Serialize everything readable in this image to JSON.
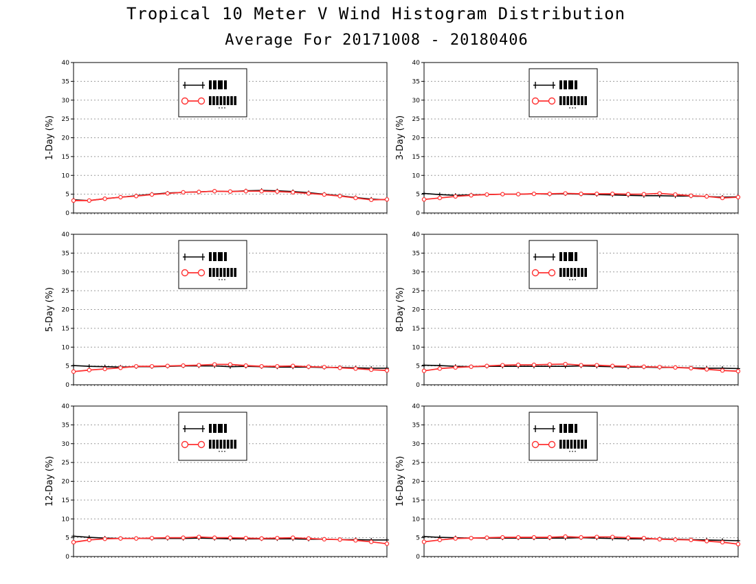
{
  "title": "Tropical 10 Meter V Wind Histogram Distribution",
  "subtitle": "Average For 20171008 - 20180406",
  "colors": {
    "series1": "#000000",
    "series2": "#ff3030",
    "grid": "#9a9a9a"
  },
  "chart_data": [
    {
      "type": "line",
      "ylabel": "1-Day (%)",
      "ylim": [
        0,
        40
      ],
      "yticks": [
        0,
        5,
        10,
        15,
        20,
        25,
        30,
        35,
        40
      ],
      "legend_position": "top-center",
      "series": [
        {
          "name": "",
          "marker": "plus",
          "values": [
            3.5,
            3.3,
            3.8,
            4.2,
            4.6,
            5.0,
            5.3,
            5.5,
            5.6,
            5.8,
            5.7,
            5.9,
            6.0,
            5.9,
            5.7,
            5.4,
            5.0,
            4.6,
            4.1,
            3.7,
            3.5
          ]
        },
        {
          "name": "",
          "marker": "circle",
          "values": [
            3.3,
            3.3,
            3.8,
            4.2,
            4.5,
            4.9,
            5.2,
            5.5,
            5.6,
            5.8,
            5.7,
            5.8,
            5.8,
            5.7,
            5.5,
            5.2,
            4.9,
            4.5,
            4.0,
            3.5,
            3.6
          ]
        }
      ]
    },
    {
      "type": "line",
      "ylabel": "3-Day (%)",
      "ylim": [
        0,
        40
      ],
      "yticks": [
        0,
        5,
        10,
        15,
        20,
        25,
        30,
        35,
        40
      ],
      "legend_position": "top-center",
      "series": [
        {
          "name": "",
          "marker": "plus",
          "values": [
            5.2,
            4.9,
            4.7,
            4.8,
            4.9,
            5.0,
            5.0,
            5.1,
            5.0,
            5.1,
            5.0,
            4.9,
            4.8,
            4.7,
            4.6,
            4.6,
            4.5,
            4.5,
            4.4,
            4.2,
            4.3
          ]
        },
        {
          "name": "",
          "marker": "circle",
          "values": [
            3.6,
            4.0,
            4.4,
            4.7,
            4.9,
            5.0,
            5.0,
            5.1,
            5.1,
            5.2,
            5.1,
            5.1,
            5.1,
            5.0,
            5.0,
            5.2,
            4.9,
            4.6,
            4.4,
            4.0,
            4.2
          ]
        }
      ]
    },
    {
      "type": "line",
      "ylabel": "5-Day (%)",
      "ylim": [
        0,
        40
      ],
      "yticks": [
        0,
        5,
        10,
        15,
        20,
        25,
        30,
        35,
        40
      ],
      "legend_position": "top-center",
      "series": [
        {
          "name": "",
          "marker": "plus",
          "values": [
            5.1,
            4.9,
            4.8,
            4.7,
            4.8,
            4.8,
            4.9,
            5.0,
            5.0,
            5.0,
            4.8,
            4.9,
            4.8,
            4.7,
            4.7,
            4.7,
            4.6,
            4.6,
            4.5,
            4.4,
            4.4
          ]
        },
        {
          "name": "",
          "marker": "circle",
          "values": [
            3.5,
            3.9,
            4.2,
            4.5,
            4.9,
            4.9,
            5.0,
            5.1,
            5.2,
            5.4,
            5.4,
            5.1,
            4.9,
            4.9,
            5.0,
            4.8,
            4.7,
            4.5,
            4.3,
            4.0,
            3.8
          ]
        }
      ]
    },
    {
      "type": "line",
      "ylabel": "8-Day (%)",
      "ylim": [
        0,
        40
      ],
      "yticks": [
        0,
        5,
        10,
        15,
        20,
        25,
        30,
        35,
        40
      ],
      "legend_position": "top-center",
      "series": [
        {
          "name": "",
          "marker": "plus",
          "values": [
            5.2,
            5.1,
            4.9,
            4.8,
            4.9,
            4.9,
            4.9,
            4.9,
            4.9,
            4.9,
            5.0,
            4.9,
            4.8,
            4.7,
            4.7,
            4.6,
            4.6,
            4.5,
            4.4,
            4.4,
            4.3
          ]
        },
        {
          "name": "",
          "marker": "circle",
          "values": [
            3.7,
            4.3,
            4.6,
            4.8,
            5.0,
            5.2,
            5.3,
            5.3,
            5.4,
            5.5,
            5.2,
            5.2,
            5.0,
            4.9,
            4.8,
            4.7,
            4.6,
            4.4,
            4.1,
            3.8,
            3.6
          ]
        }
      ]
    },
    {
      "type": "line",
      "ylabel": "12-Day (%)",
      "ylim": [
        0,
        40
      ],
      "yticks": [
        0,
        5,
        10,
        15,
        20,
        25,
        30,
        35,
        40
      ],
      "legend_position": "top-center",
      "series": [
        {
          "name": "",
          "marker": "plus",
          "values": [
            5.4,
            5.1,
            4.9,
            4.8,
            4.8,
            4.8,
            4.8,
            4.8,
            4.9,
            4.8,
            4.7,
            4.7,
            4.7,
            4.7,
            4.7,
            4.6,
            4.6,
            4.5,
            4.5,
            4.4,
            4.4
          ]
        },
        {
          "name": "",
          "marker": "circle",
          "values": [
            3.8,
            4.4,
            4.7,
            4.8,
            4.8,
            4.9,
            5.0,
            5.0,
            5.2,
            5.0,
            5.0,
            4.9,
            4.8,
            4.9,
            5.0,
            4.8,
            4.6,
            4.5,
            4.3,
            3.9,
            3.4
          ]
        }
      ]
    },
    {
      "type": "line",
      "ylabel": "16-Day (%)",
      "ylim": [
        0,
        40
      ],
      "yticks": [
        0,
        5,
        10,
        15,
        20,
        25,
        30,
        35,
        40
      ],
      "legend_position": "top-center",
      "series": [
        {
          "name": "",
          "marker": "plus",
          "values": [
            5.3,
            5.1,
            5.0,
            4.9,
            4.9,
            4.9,
            4.9,
            4.9,
            4.9,
            4.9,
            5.0,
            4.9,
            4.8,
            4.7,
            4.7,
            4.7,
            4.6,
            4.5,
            4.4,
            4.3,
            4.2
          ]
        },
        {
          "name": "",
          "marker": "circle",
          "values": [
            3.9,
            4.4,
            4.8,
            4.9,
            5.0,
            5.1,
            5.1,
            5.1,
            5.1,
            5.3,
            5.1,
            5.2,
            5.2,
            5.0,
            4.9,
            4.6,
            4.5,
            4.4,
            4.1,
            3.8,
            3.3
          ]
        }
      ]
    }
  ]
}
